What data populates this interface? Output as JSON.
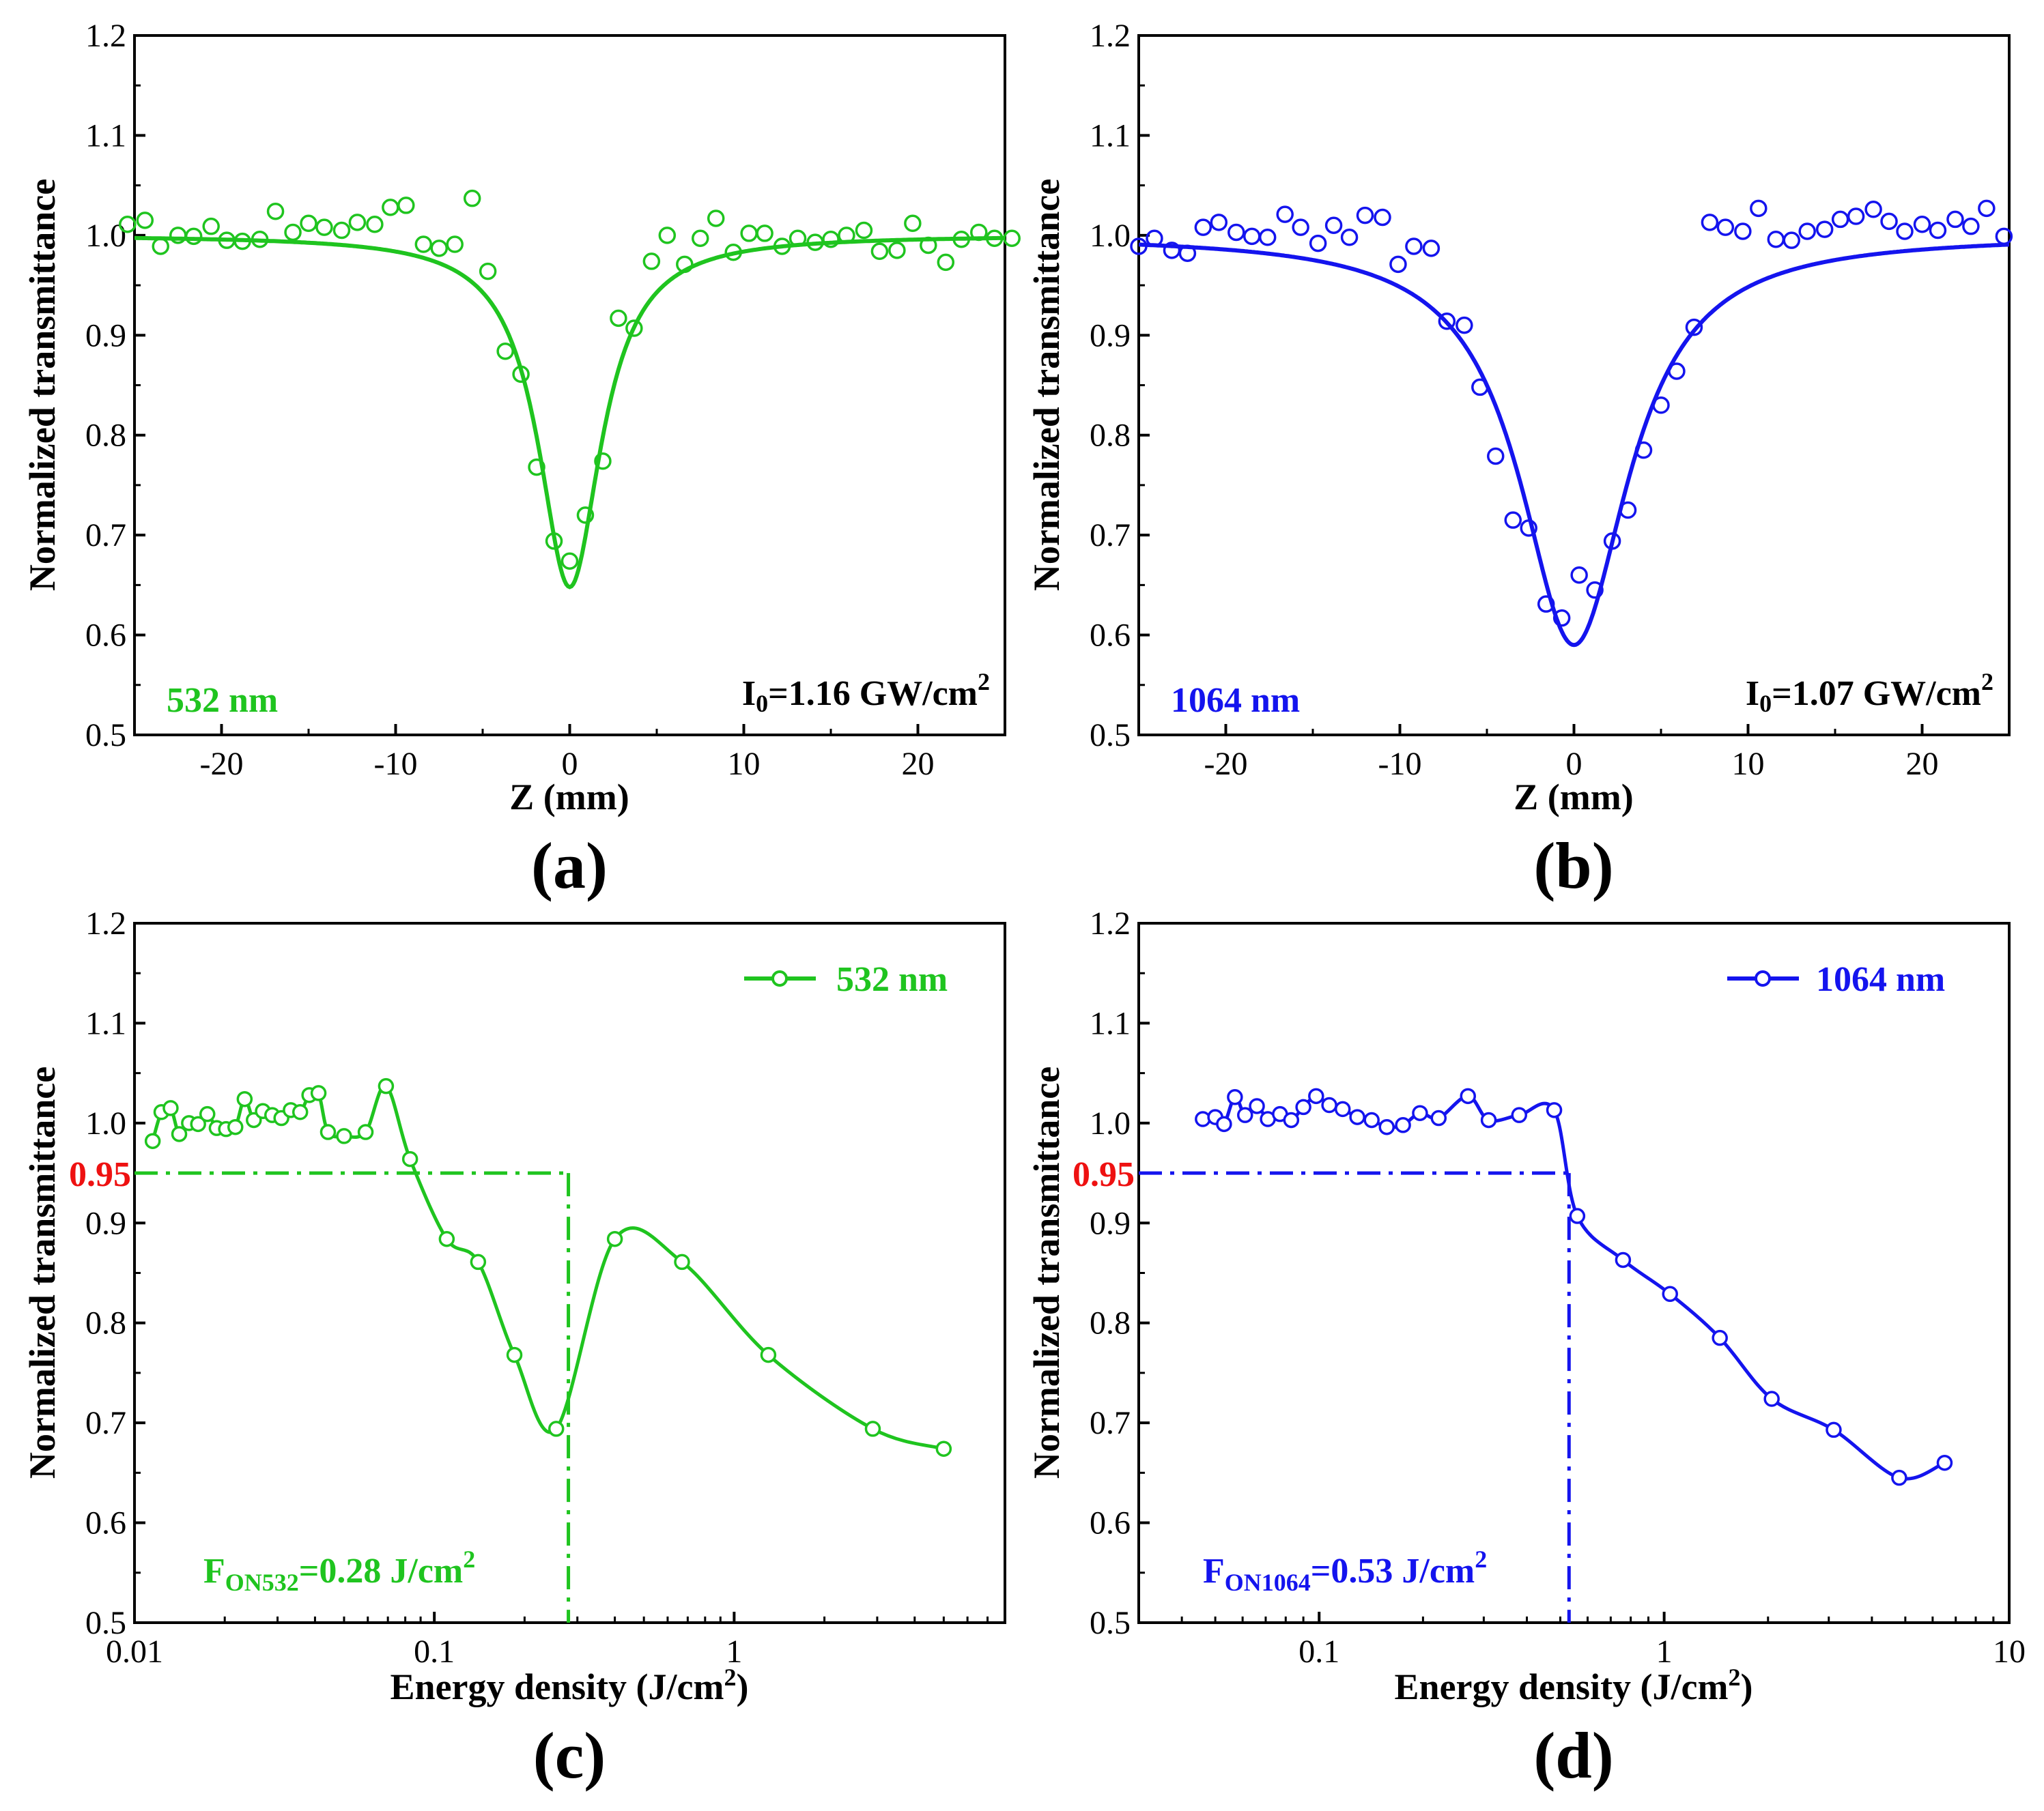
{
  "colors": {
    "green": "#1fc41f",
    "blue": "#1414ee",
    "red": "#ee1111",
    "black": "#000000"
  },
  "chart_data": [
    {
      "id": "a",
      "type": "scatter",
      "panel_label": "(a)",
      "xlabel": "Z (mm)",
      "ylabel": "Normalized transmittance",
      "xlim": [
        -25,
        25
      ],
      "ylim": [
        0.5,
        1.2
      ],
      "xticks": [
        -20,
        -10,
        0,
        10,
        20
      ],
      "xtick_labels": [
        "-20",
        "-10",
        "0",
        "10",
        "20"
      ],
      "yticks": [
        0.5,
        0.6,
        0.7,
        0.8,
        0.9,
        1.0,
        1.1,
        1.2
      ],
      "ytick_labels": [
        "0.5",
        "0.6",
        "0.7",
        "0.8",
        "0.9",
        "1.0",
        "1.1",
        "1.2"
      ],
      "wavelength_label": "532 nm",
      "intensity": {
        "base": "I",
        "sub": "0",
        "rest": "=1.16 GW/cm",
        "sup": "2"
      },
      "color": "#1fc41f",
      "series": [
        {
          "name": "experimental",
          "x": [
            -25.4,
            -24.4,
            -23.5,
            -22.5,
            -21.6,
            -20.6,
            -19.7,
            -18.8,
            -17.8,
            -16.9,
            -15.9,
            -15.0,
            -14.1,
            -13.1,
            -12.2,
            -11.2,
            -10.3,
            -9.4,
            -8.4,
            -7.5,
            -6.6,
            -5.6,
            -4.7,
            -3.7,
            -2.8,
            -1.9,
            -0.9,
            0.0,
            0.9,
            1.9,
            2.8,
            3.7,
            4.7,
            5.6,
            6.6,
            7.5,
            8.4,
            9.4,
            10.3,
            11.2,
            12.2,
            13.1,
            14.1,
            15.0,
            15.9,
            16.9,
            17.8,
            18.8,
            19.7,
            20.6,
            21.6,
            22.5,
            23.5,
            24.4,
            25.4
          ],
          "y": [
            1.011,
            1.015,
            0.989,
            1.0,
            0.999,
            1.009,
            0.995,
            0.994,
            0.996,
            1.024,
            1.003,
            1.012,
            1.008,
            1.005,
            1.013,
            1.011,
            1.028,
            1.03,
            0.991,
            0.987,
            0.991,
            1.037,
            0.964,
            0.884,
            0.861,
            0.768,
            0.694,
            0.674,
            0.72,
            0.774,
            0.917,
            0.907,
            0.974,
            1.0,
            0.971,
            0.997,
            1.017,
            0.983,
            1.002,
            1.002,
            0.989,
            0.997,
            0.993,
            0.996,
            1.0,
            1.005,
            0.984,
            0.985,
            1.012,
            0.99,
            0.973,
            0.996,
            1.003,
            0.997,
            0.997
          ]
        },
        {
          "name": "fit",
          "model": "lorentzian",
          "depth": 0.352,
          "z0_mm": 2.2
        }
      ]
    },
    {
      "id": "b",
      "type": "scatter",
      "panel_label": "(b)",
      "xlabel": "Z (mm)",
      "ylabel": "Normalized transmittance",
      "xlim": [
        -25,
        25
      ],
      "ylim": [
        0.5,
        1.2
      ],
      "xticks": [
        -20,
        -10,
        0,
        10,
        20
      ],
      "xtick_labels": [
        "-20",
        "-10",
        "0",
        "10",
        "20"
      ],
      "yticks": [
        0.5,
        0.6,
        0.7,
        0.8,
        0.9,
        1.0,
        1.1,
        1.2
      ],
      "ytick_labels": [
        "0.5",
        "0.6",
        "0.7",
        "0.8",
        "0.9",
        "1.0",
        "1.1",
        "1.2"
      ],
      "wavelength_label": "1064 nm",
      "intensity": {
        "base": "I",
        "sub": "0",
        "rest": "=1.07 GW/cm",
        "sup": "2"
      },
      "color": "#1414ee",
      "series": [
        {
          "name": "experimental",
          "x": [
            -25.0,
            -24.1,
            -23.1,
            -22.2,
            -21.3,
            -20.4,
            -19.4,
            -18.5,
            -17.6,
            -16.6,
            -15.7,
            -14.7,
            -13.8,
            -12.9,
            -12.0,
            -11.0,
            -10.1,
            -9.2,
            -8.2,
            -7.3,
            -6.3,
            -5.4,
            -4.5,
            -3.5,
            -2.6,
            -1.6,
            -0.7,
            0.3,
            1.2,
            2.2,
            3.1,
            4.0,
            5.0,
            5.9,
            6.9,
            7.8,
            8.7,
            9.7,
            10.6,
            11.6,
            12.5,
            13.4,
            14.4,
            15.3,
            16.2,
            17.2,
            18.1,
            19.0,
            20.0,
            20.9,
            21.9,
            22.8,
            23.7,
            24.7
          ],
          "y": [
            0.989,
            0.997,
            0.985,
            0.982,
            1.008,
            1.013,
            1.003,
            0.999,
            0.998,
            1.021,
            1.008,
            0.992,
            1.01,
            0.998,
            1.02,
            1.018,
            0.971,
            0.989,
            0.987,
            0.914,
            0.91,
            0.848,
            0.779,
            0.715,
            0.707,
            0.631,
            0.617,
            0.66,
            0.645,
            0.694,
            0.725,
            0.785,
            0.83,
            0.864,
            0.908,
            1.013,
            1.008,
            1.004,
            1.027,
            0.996,
            0.995,
            1.004,
            1.006,
            1.016,
            1.019,
            1.026,
            1.014,
            1.004,
            1.011,
            1.005,
            1.016,
            1.009,
            1.027,
            0.999
          ]
        },
        {
          "name": "fit",
          "model": "lorentzian",
          "depth": 0.41,
          "z0_mm": 3.8
        }
      ]
    },
    {
      "id": "c",
      "type": "line",
      "xscale": "log",
      "panel_label": "(c)",
      "xlabel": "Energy density (J/cm",
      "xlabel_sup": "2",
      "xlabel_end": ")",
      "ylabel": "Normalized transmittance",
      "xlim": [
        0.01,
        8
      ],
      "ylim": [
        0.5,
        1.2
      ],
      "xticks": [
        0.01,
        0.1,
        1
      ],
      "xtick_labels": [
        "0.01",
        "0.1",
        "1"
      ],
      "yticks": [
        0.5,
        0.6,
        0.7,
        0.8,
        0.9,
        1.0,
        1.1,
        1.2
      ],
      "ytick_labels": [
        "0.5",
        "0.6",
        "0.7",
        "0.8",
        "0.9",
        "1.0",
        "1.1",
        "1.2"
      ],
      "legend": "532 nm",
      "legend_position": "top-right",
      "threshold_y": 0.95,
      "threshold_y_label": "0.95",
      "threshold_x": 0.28,
      "onset": {
        "base": "F",
        "sub": "ON532",
        "rest": "=0.28 J/cm",
        "sup": "2"
      },
      "color": "#1fc41f",
      "series": [
        {
          "name": "532 nm",
          "x": [
            0.0115,
            0.0123,
            0.0132,
            0.0141,
            0.0152,
            0.0163,
            0.0175,
            0.0188,
            0.0202,
            0.0217,
            0.0233,
            0.025,
            0.0268,
            0.0288,
            0.0309,
            0.0332,
            0.0357,
            0.0383,
            0.0411,
            0.0442,
            0.05,
            0.059,
            0.069,
            0.083,
            0.11,
            0.14,
            0.185,
            0.255,
            0.4,
            0.67,
            1.3,
            2.9,
            5.0
          ],
          "y": [
            0.982,
            1.011,
            1.015,
            0.989,
            1.0,
            0.999,
            1.009,
            0.995,
            0.994,
            0.996,
            1.024,
            1.003,
            1.012,
            1.008,
            1.005,
            1.013,
            1.011,
            1.028,
            1.03,
            0.991,
            0.987,
            0.991,
            1.037,
            0.964,
            0.884,
            0.861,
            0.768,
            0.694,
            0.884,
            0.861,
            0.768,
            0.694,
            0.674
          ]
        }
      ]
    },
    {
      "id": "d",
      "type": "line",
      "xscale": "log",
      "panel_label": "(d)",
      "xlabel": "Energy density (J/cm",
      "xlabel_sup": "2",
      "xlabel_end": ")",
      "ylabel": "Normalized transmittance",
      "xlim": [
        0.03,
        10
      ],
      "ylim": [
        0.5,
        1.2
      ],
      "xticks": [
        0.1,
        1,
        10
      ],
      "xtick_labels": [
        "0.1",
        "1",
        "10"
      ],
      "yticks": [
        0.5,
        0.6,
        0.7,
        0.8,
        0.9,
        1.0,
        1.1,
        1.2
      ],
      "ytick_labels": [
        "0.5",
        "0.6",
        "0.7",
        "0.8",
        "0.9",
        "1.0",
        "1.1",
        "1.2"
      ],
      "legend": "1064 nm",
      "legend_position": "top-right",
      "threshold_y": 0.95,
      "threshold_y_label": "0.95",
      "threshold_x": 0.53,
      "onset": {
        "base": "F",
        "sub": "ON1064",
        "rest": "=0.53 J/cm",
        "sup": "2"
      },
      "color": "#1414ee",
      "series": [
        {
          "name": "1064 nm",
          "x": [
            0.046,
            0.05,
            0.053,
            0.057,
            0.061,
            0.066,
            0.071,
            0.077,
            0.083,
            0.09,
            0.098,
            0.107,
            0.117,
            0.129,
            0.142,
            0.157,
            0.175,
            0.196,
            0.222,
            0.27,
            0.31,
            0.38,
            0.48,
            0.56,
            0.76,
            1.04,
            1.45,
            2.05,
            3.1,
            4.8,
            6.5
          ],
          "y": [
            1.004,
            1.006,
            0.999,
            1.026,
            1.008,
            1.017,
            1.004,
            1.009,
            1.003,
            1.016,
            1.027,
            1.018,
            1.014,
            1.006,
            1.003,
            0.996,
            0.998,
            1.01,
            1.005,
            1.027,
            1.003,
            1.008,
            1.013,
            0.907,
            0.863,
            0.829,
            0.785,
            0.724,
            0.693,
            0.645,
            0.66
          ]
        }
      ]
    }
  ]
}
